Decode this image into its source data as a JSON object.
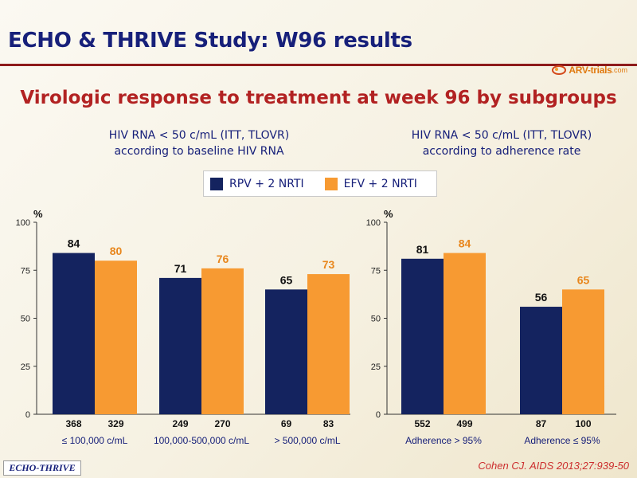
{
  "slide": {
    "title": "ECHO & THRIVE Study: W96 results",
    "subtitle": "Virologic response to treatment at week 96 by subgroups",
    "footer_brand": "ECHO-THRIVE",
    "citation": "Cohen CJ. AIDS 2013;27:939-50"
  },
  "logo": {
    "text": "ARV-trials",
    "suffix": ".com"
  },
  "colors": {
    "rpv": "#14235f",
    "efv": "#f79a32",
    "title": "#17207a",
    "subtitle": "#b22222"
  },
  "legend": [
    {
      "label": "RPV + 2 NRTI",
      "color": "#14235f"
    },
    {
      "label": "EFV + 2 NRTI",
      "color": "#f79a32"
    }
  ],
  "panels": [
    {
      "title_line1": "HIV RNA < 50 c/mL (ITT, TLOVR)",
      "title_line2": "according to baseline HIV RNA"
    },
    {
      "title_line1": "HIV RNA < 50 c/mL (ITT, TLOVR)",
      "title_line2": "according to adherence rate"
    }
  ],
  "chart_data": [
    {
      "type": "bar",
      "ylabel": "%",
      "ylim": [
        0,
        100
      ],
      "yticks": [
        "0",
        "25",
        "50",
        "75",
        "100"
      ],
      "categories": [
        "≤ 100,000 c/mL",
        "100,000-500,000 c/mL",
        "> 500,000 c/mL"
      ],
      "series": [
        {
          "name": "RPV + 2 NRTI",
          "values": [
            84,
            71,
            65
          ],
          "n": [
            "368",
            "249",
            "69"
          ]
        },
        {
          "name": "EFV + 2 NRTI",
          "values": [
            80,
            76,
            73
          ],
          "n": [
            "329",
            "270",
            "83"
          ]
        }
      ]
    },
    {
      "type": "bar",
      "ylabel": "%",
      "ylim": [
        0,
        100
      ],
      "yticks": [
        "0",
        "25",
        "50",
        "75",
        "100"
      ],
      "categories": [
        "Adherence > 95%",
        "Adherence ≤ 95%"
      ],
      "series": [
        {
          "name": "RPV + 2 NRTI",
          "values": [
            81,
            56
          ],
          "n": [
            "552",
            "87"
          ]
        },
        {
          "name": "EFV + 2 NRTI",
          "values": [
            84,
            65
          ],
          "n": [
            "499",
            "100"
          ]
        }
      ]
    }
  ]
}
